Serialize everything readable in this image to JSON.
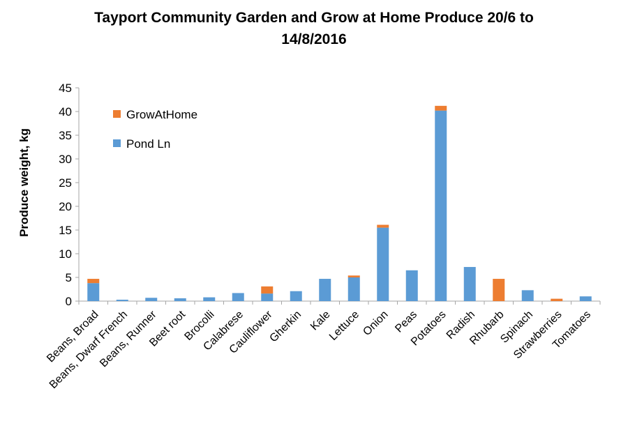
{
  "chart_data": {
    "type": "bar",
    "stacked": true,
    "title_lines": [
      "Tayport Community Garden and Grow at Home Produce 20/6 to",
      "14/8/2016"
    ],
    "xlabel": "",
    "ylabel": "Produce weight, kg",
    "ylim": [
      0,
      45
    ],
    "yticks": [
      0,
      5,
      10,
      15,
      20,
      25,
      30,
      35,
      40,
      45
    ],
    "grid": false,
    "legend_position": "top-left",
    "categories": [
      "Beans, Broad",
      "Beans, Dwarf French",
      "Beans, Runner",
      "Beet root",
      "Brocolli",
      "Calabrese",
      "Cauliflower",
      "Gherkin",
      "Kale",
      "Lettuce",
      "Onion",
      "Peas",
      "Potatoes",
      "Radish",
      "Rhubarb",
      "Spinach",
      "Strawberries",
      "Tomatoes"
    ],
    "series": [
      {
        "name": "Pond Ln",
        "color": "#5B9BD5",
        "values": [
          3.8,
          0.3,
          0.7,
          0.6,
          0.8,
          1.7,
          1.6,
          2.1,
          4.7,
          5.0,
          15.5,
          6.5,
          40.2,
          7.2,
          0,
          2.3,
          0,
          1.0
        ]
      },
      {
        "name": "GrowAtHome",
        "color": "#ED7D31",
        "values": [
          0.9,
          0,
          0,
          0,
          0,
          0,
          1.5,
          0,
          0,
          0.4,
          0.6,
          0,
          1.0,
          0,
          4.7,
          0,
          0.5,
          0
        ]
      }
    ],
    "legend_order": [
      "GrowAtHome",
      "Pond Ln"
    ]
  }
}
